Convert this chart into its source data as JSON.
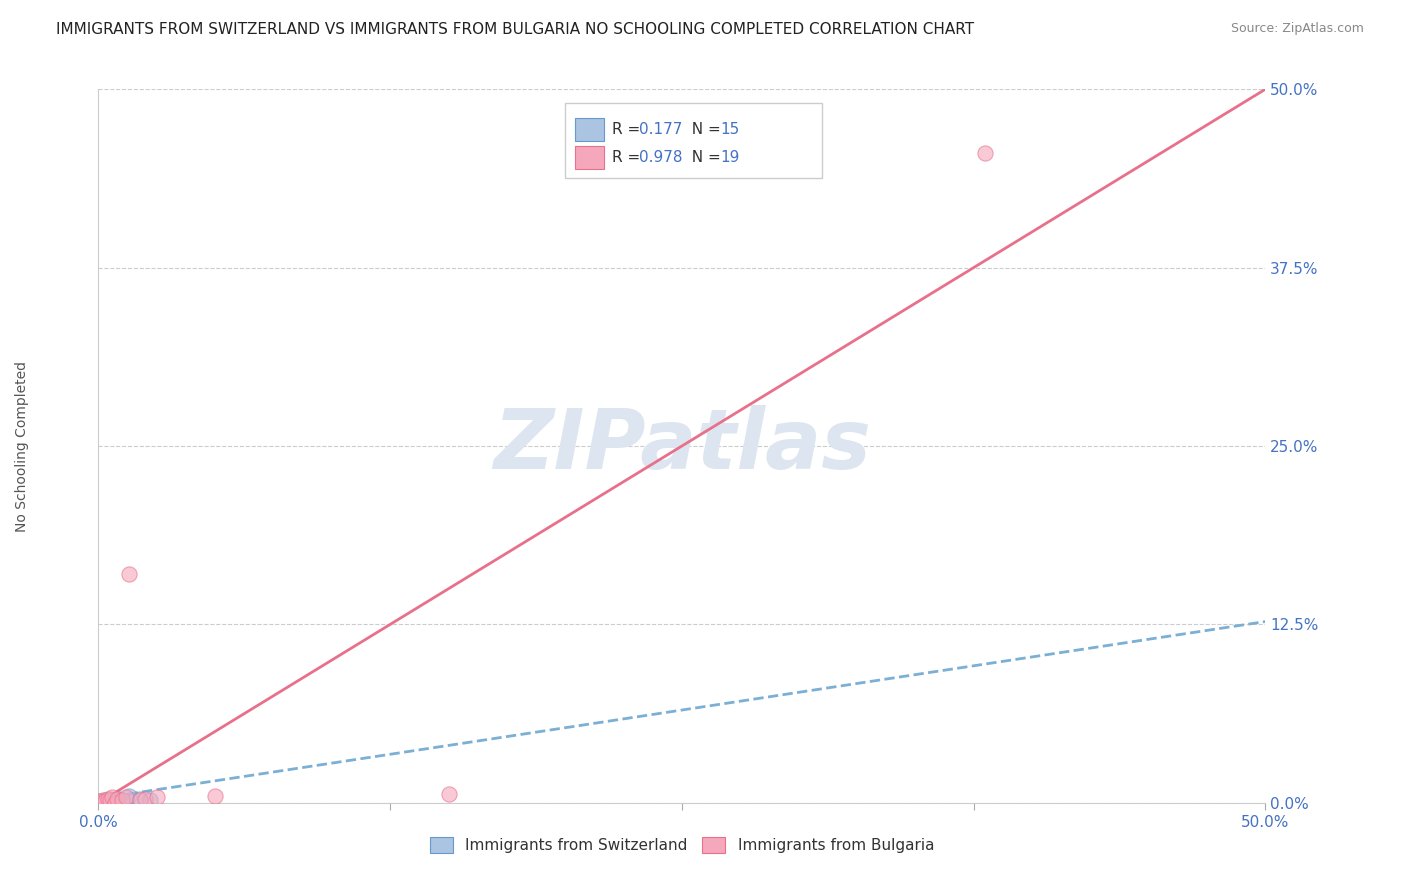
{
  "title": "IMMIGRANTS FROM SWITZERLAND VS IMMIGRANTS FROM BULGARIA NO SCHOOLING COMPLETED CORRELATION CHART",
  "source": "Source: ZipAtlas.com",
  "ylabel": "No Schooling Completed",
  "xlim": [
    0,
    0.5
  ],
  "ylim": [
    0,
    0.5
  ],
  "xticks": [
    0.0,
    0.125,
    0.25,
    0.375,
    0.5
  ],
  "yticks": [
    0.0,
    0.125,
    0.25,
    0.375,
    0.5
  ],
  "xtick_labels_show": [
    "0.0%",
    "",
    "",
    "",
    "50.0%"
  ],
  "ytick_labels_show": [
    "0.0%",
    "12.5%",
    "25.0%",
    "37.5%",
    "50.0%"
  ],
  "swiss_color": "#aac4e2",
  "bulgaria_color": "#f5a8bc",
  "swiss_edge_color": "#6699cc",
  "bulgaria_edge_color": "#e8708a",
  "swiss_line_color": "#7bafd4",
  "bulgaria_line_color": "#e8708a",
  "r_value_color": "#4472c4",
  "watermark_color": "#dde6f0",
  "watermark_text": "ZIPatlas",
  "background_color": "#ffffff",
  "grid_color": "#cccccc",
  "swiss_scatter_x": [
    0.0,
    0.001,
    0.002,
    0.003,
    0.004,
    0.005,
    0.006,
    0.007,
    0.008,
    0.009,
    0.01,
    0.012,
    0.013,
    0.018,
    0.022
  ],
  "swiss_scatter_y": [
    0.0,
    0.001,
    0.0,
    0.002,
    0.001,
    0.003,
    0.0,
    0.002,
    0.001,
    0.003,
    0.002,
    0.001,
    0.005,
    0.003,
    0.002
  ],
  "bulgaria_scatter_x": [
    0.0,
    0.0,
    0.001,
    0.002,
    0.003,
    0.004,
    0.005,
    0.006,
    0.007,
    0.008,
    0.01,
    0.012,
    0.013,
    0.018,
    0.02,
    0.025,
    0.05,
    0.15,
    0.38
  ],
  "bulgaria_scatter_y": [
    0.0,
    0.001,
    0.0,
    0.002,
    0.001,
    0.003,
    0.002,
    0.004,
    0.0,
    0.003,
    0.002,
    0.004,
    0.16,
    0.002,
    0.003,
    0.004,
    0.005,
    0.006,
    0.455
  ],
  "swiss_line_x": [
    0.0,
    0.5
  ],
  "swiss_line_y": [
    0.003,
    0.127
  ],
  "bulgaria_line_x": [
    0.0,
    0.5
  ],
  "bulgaria_line_y": [
    0.0,
    0.5
  ],
  "title_fontsize": 11,
  "axis_label_fontsize": 10,
  "tick_fontsize": 11,
  "legend_fontsize": 11,
  "watermark_fontsize": 60,
  "title_color": "#222222",
  "axis_tick_color": "#4472c4",
  "bottom_legend_labels": [
    "Immigrants from Switzerland",
    "Immigrants from Bulgaria"
  ],
  "scatter_size": 120,
  "scatter_alpha": 0.6
}
